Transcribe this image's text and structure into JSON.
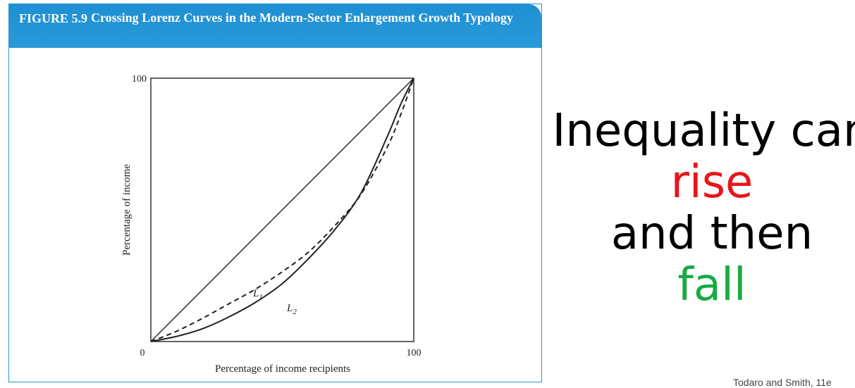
{
  "figure": {
    "number": "FIGURE 5.9",
    "title": "Crossing Lorenz Curves in the Modern-Sector Enlargement Growth Typology",
    "header_color": "#1e8fd2"
  },
  "chart_data": {
    "type": "line",
    "title": "Crossing Lorenz Curves in the Modern-Sector Enlargement Growth Typology",
    "xlabel": "Percentage of income recipients",
    "ylabel": "Percentage of income",
    "xlim": [
      0,
      100
    ],
    "ylim": [
      0,
      100
    ],
    "x_ticks": [
      "0",
      "100"
    ],
    "y_ticks": [
      "0",
      "100"
    ],
    "grid": false,
    "series": [
      {
        "name": "",
        "style": "solid",
        "x": [
          0,
          100
        ],
        "y": [
          0,
          100
        ]
      },
      {
        "name": "L1",
        "style": "dashed",
        "x": [
          0,
          10,
          20,
          30,
          40,
          50,
          60,
          70,
          80,
          90,
          95,
          100
        ],
        "y": [
          0,
          4,
          9,
          14.5,
          20,
          26.5,
          34,
          44,
          56,
          74,
          86,
          100
        ]
      },
      {
        "name": "L2",
        "style": "solid",
        "x": [
          0,
          10,
          20,
          30,
          40,
          50,
          60,
          70,
          80,
          90,
          95,
          100
        ],
        "y": [
          0,
          2,
          5,
          9.5,
          15,
          22,
          31.5,
          42.5,
          56.5,
          78,
          90,
          100
        ]
      }
    ],
    "labels": {
      "l1": "L",
      "l1_sub": "1",
      "l2": "L",
      "l2_sub": "2"
    }
  },
  "side_text": {
    "line1": "Inequality can",
    "line2": "rise",
    "line3": "and then",
    "line4": "fall",
    "rise_color": "#e8161b",
    "fall_color": "#1aaa44"
  },
  "footnote": "Todaro and Smith, 11e"
}
